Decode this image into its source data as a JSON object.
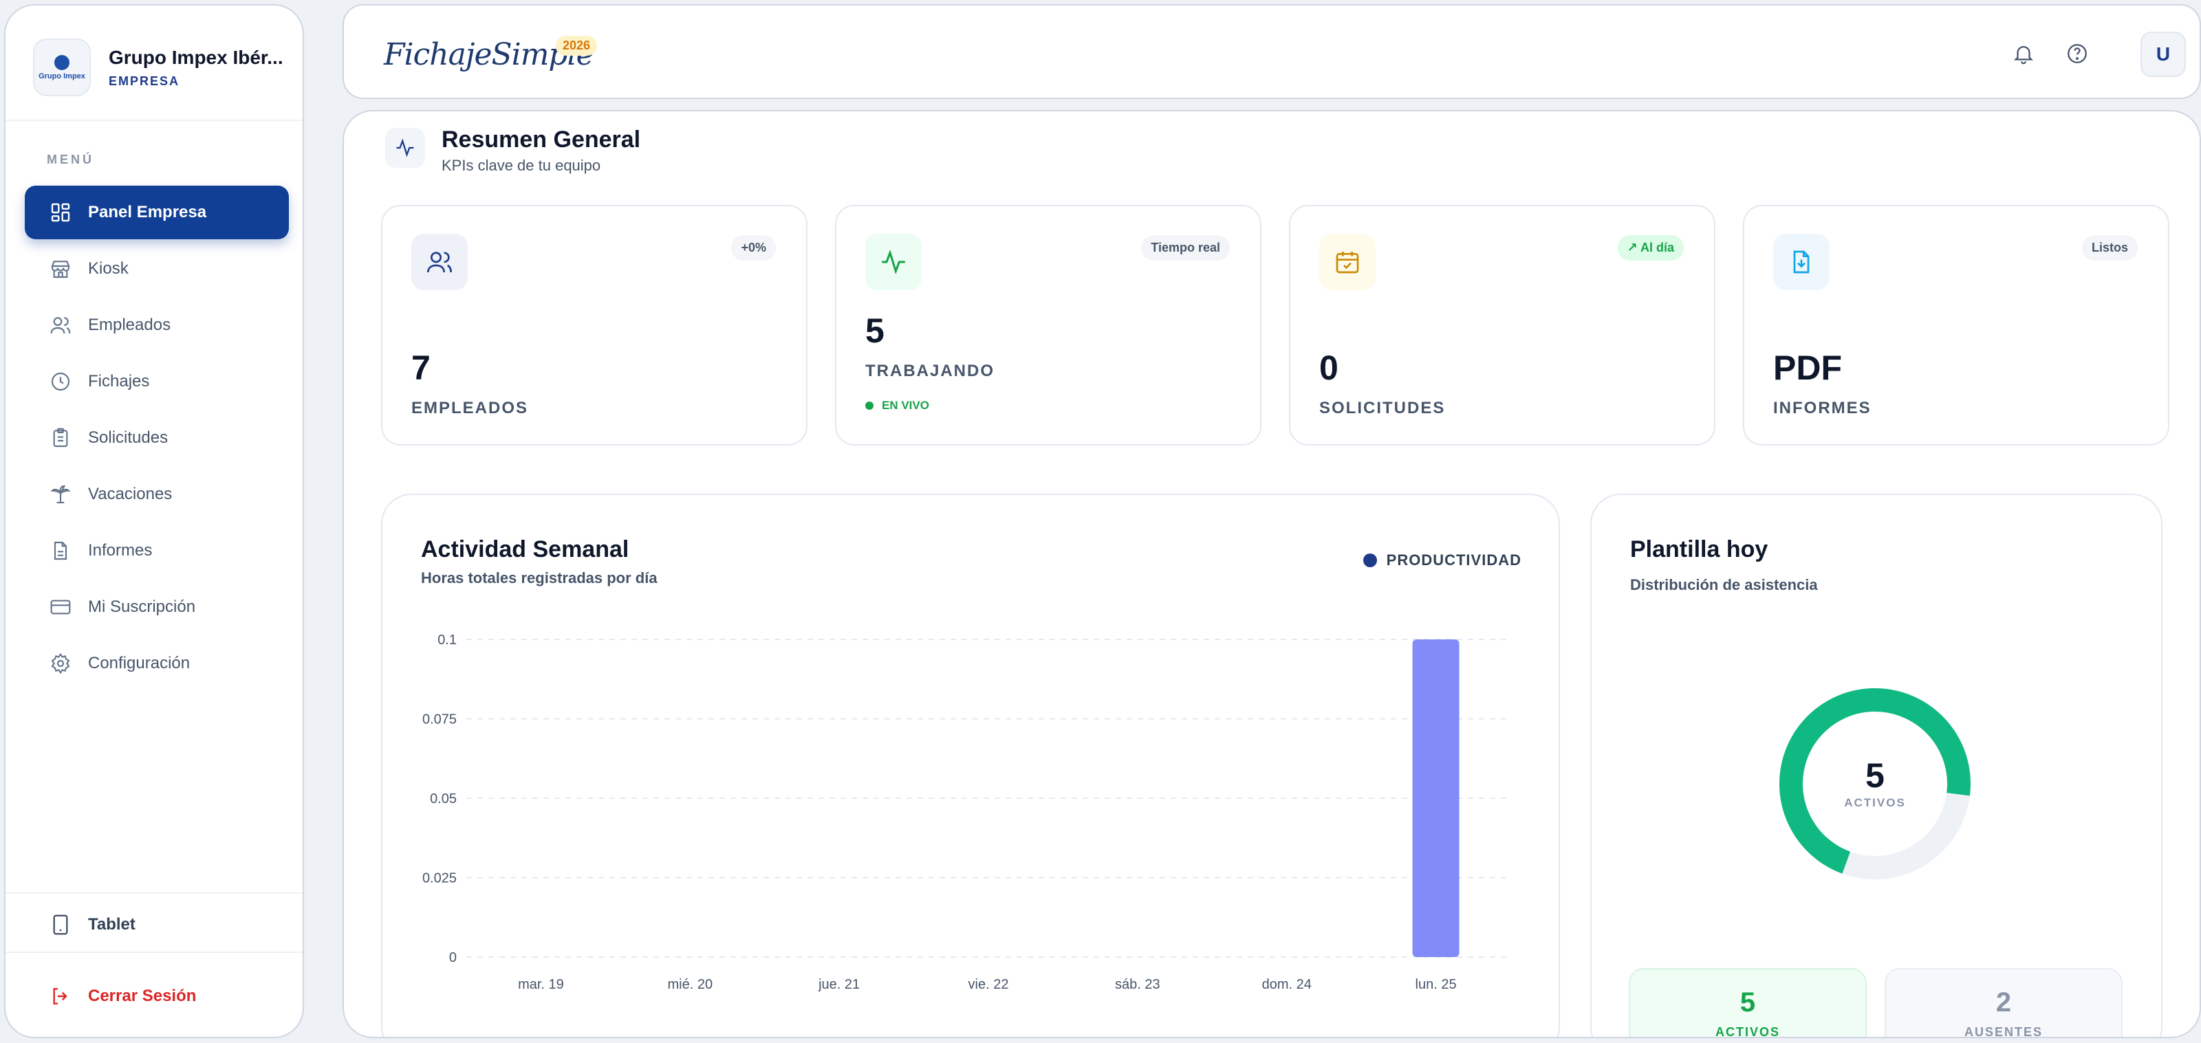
{
  "sidebar": {
    "company_name": "Grupo Impex Ibér...",
    "company_role": "EMPRESA",
    "logo_text": "Grupo Impex",
    "menu_title": "MENÚ",
    "items": [
      {
        "label": "Panel Empresa",
        "icon": "dashboard-icon"
      },
      {
        "label": "Kiosk",
        "icon": "store-icon"
      },
      {
        "label": "Empleados",
        "icon": "users-icon"
      },
      {
        "label": "Fichajes",
        "icon": "clock-icon"
      },
      {
        "label": "Solicitudes",
        "icon": "clipboard-icon"
      },
      {
        "label": "Vacaciones",
        "icon": "palm-tree-icon"
      },
      {
        "label": "Informes",
        "icon": "file-icon"
      },
      {
        "label": "Mi Suscripción",
        "icon": "credit-card-icon"
      },
      {
        "label": "Configuración",
        "icon": "gear-icon"
      }
    ],
    "tablet_label": "Tablet",
    "logout_label": "Cerrar Sesión"
  },
  "header": {
    "app_name": "FichajeSimple",
    "year_badge": "2026",
    "avatar_initial": "U"
  },
  "summary": {
    "title": "Resumen General",
    "subtitle": "KPIs clave de tu equipo"
  },
  "kpis": [
    {
      "value": "7",
      "label": "EMPLEADOS",
      "badge": "+0%"
    },
    {
      "value": "5",
      "label": "TRABAJANDO",
      "badge": "Tiempo real",
      "live": "EN VIVO"
    },
    {
      "value": "0",
      "label": "SOLICITUDES",
      "badge": "Al día"
    },
    {
      "value": "PDF",
      "label": "INFORMES",
      "badge": "Listos"
    }
  ],
  "weekly": {
    "title": "Actividad Semanal",
    "subtitle": "Horas totales registradas por día",
    "legend": "PRODUCTIVIDAD"
  },
  "chart_data": {
    "type": "bar",
    "title": "Actividad Semanal",
    "categories": [
      "mar. 19",
      "mié. 20",
      "jue. 21",
      "vie. 22",
      "sáb. 23",
      "dom. 24",
      "lun. 25"
    ],
    "series": [
      {
        "name": "PRODUCTIVIDAD",
        "values": [
          0,
          0,
          0,
          0,
          0,
          0,
          0.1
        ]
      }
    ],
    "y_ticks": [
      "0",
      "0.025",
      "0.05",
      "0.075",
      "0.1"
    ],
    "ylim": [
      0,
      0.1
    ],
    "grid": true,
    "legend_placement": "top-right",
    "bar_color": "#818cf8"
  },
  "staff": {
    "title": "Plantilla hoy",
    "subtitle": "Distribución de asistencia",
    "center_value": "5",
    "center_label": "ACTIVOS",
    "active_value": "5",
    "active_label": "ACTIVOS",
    "absent_value": "2",
    "absent_label": "AUSENTES",
    "active_fraction": 0.714,
    "active_color": "#10b981",
    "absent_color": "#eef1f6"
  }
}
